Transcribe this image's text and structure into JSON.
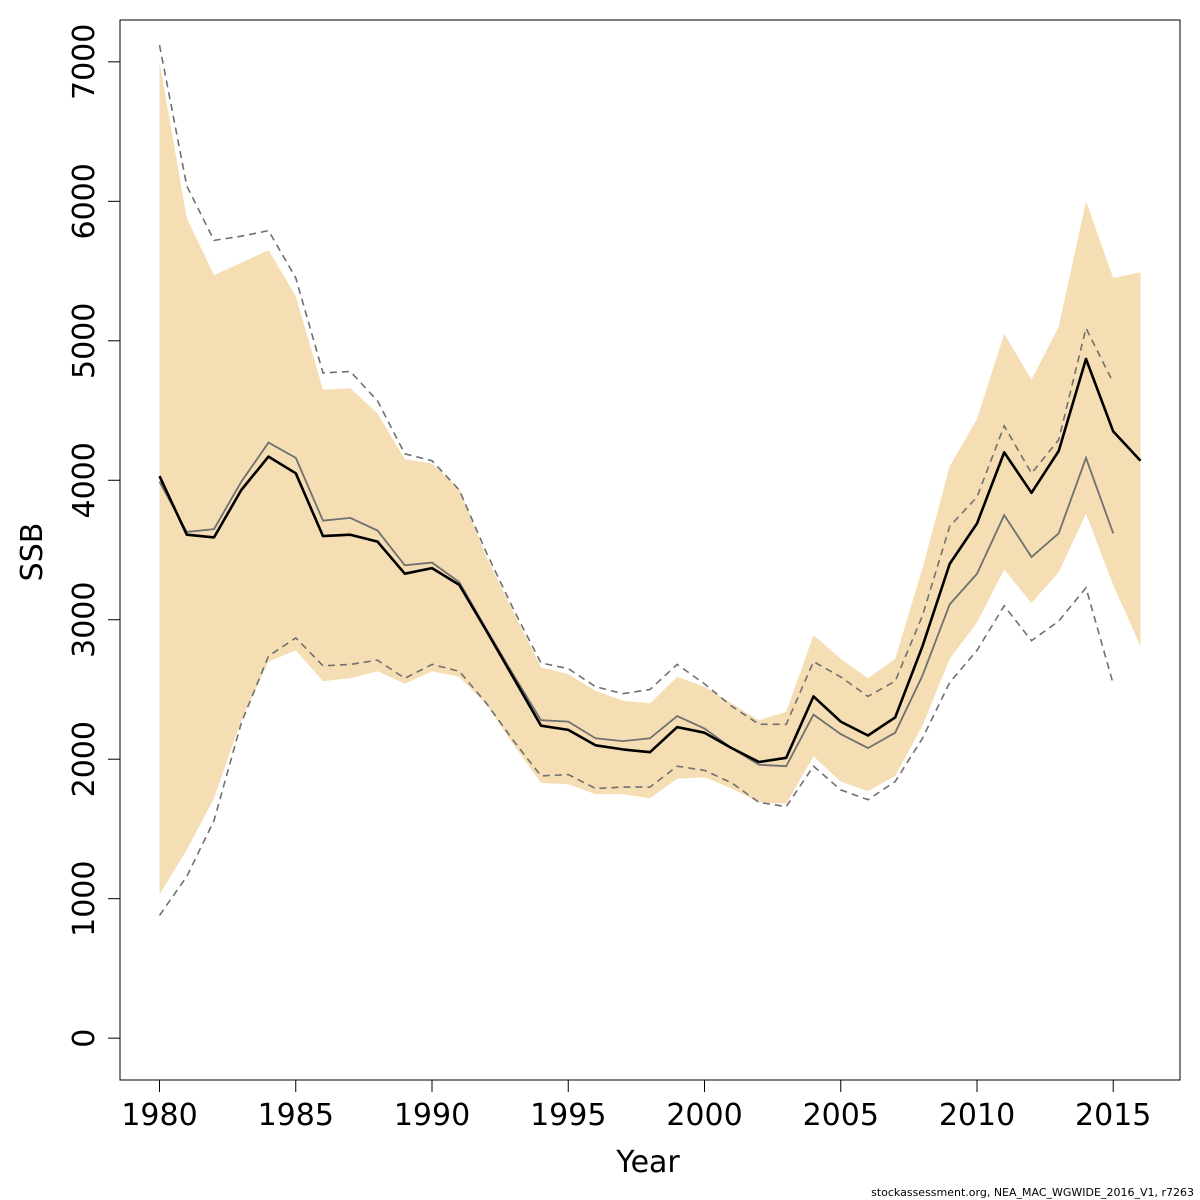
{
  "chart_data": {
    "type": "line",
    "xlabel": "Year",
    "ylabel": "SSB",
    "footnote": "stockassessment.org, NEA_MAC_WGWIDE_2016_V1, r7263",
    "xlim": [
      1978.6,
      1979.4
    ],
    "ylim": [
      -300,
      7300
    ],
    "x_ticks": [
      1980,
      1985,
      1990,
      1995,
      2000,
      2005,
      2010,
      2015
    ],
    "y_ticks": [
      0,
      1000,
      2000,
      3000,
      4000,
      5000,
      6000,
      7000
    ],
    "grid": false,
    "colors": {
      "band": "#f5deb3",
      "current": "#000000",
      "previous": "#707070"
    },
    "series": [
      {
        "role": "current-estimate",
        "x": [
          1980,
          1981,
          1982,
          1983,
          1984,
          1985,
          1986,
          1987,
          1988,
          1989,
          1990,
          1991,
          1992,
          1993,
          1994,
          1995,
          1996,
          1997,
          1998,
          1999,
          2000,
          2001,
          2002,
          2003,
          2004,
          2005,
          2006,
          2007,
          2008,
          2009,
          2010,
          2011,
          2012,
          2013,
          2014,
          2015,
          2016
        ],
        "values": [
          4030,
          3610,
          3590,
          3930,
          4170,
          4050,
          3600,
          3610,
          3560,
          3330,
          3370,
          3250,
          2920,
          2580,
          2240,
          2210,
          2100,
          2070,
          2050,
          2230,
          2190,
          2080,
          1980,
          2010,
          2450,
          2270,
          2170,
          2300,
          2810,
          3400,
          3690,
          4200,
          3910,
          4210,
          4870,
          4350,
          4140
        ],
        "lower": [
          1030,
          1350,
          1720,
          2280,
          2700,
          2780,
          2560,
          2580,
          2630,
          2540,
          2630,
          2590,
          2390,
          2100,
          1830,
          1820,
          1750,
          1750,
          1720,
          1860,
          1870,
          1790,
          1690,
          1680,
          2020,
          1840,
          1770,
          1880,
          2240,
          2720,
          2980,
          3360,
          3120,
          3340,
          3760,
          3250,
          2810
        ],
        "upper": [
          7000,
          5880,
          5470,
          5560,
          5650,
          5320,
          4650,
          4660,
          4480,
          4150,
          4120,
          3940,
          3450,
          3050,
          2660,
          2610,
          2490,
          2420,
          2400,
          2590,
          2520,
          2400,
          2280,
          2340,
          2890,
          2720,
          2580,
          2720,
          3370,
          4100,
          4440,
          5050,
          4720,
          5100,
          6000,
          5450,
          5490
        ]
      },
      {
        "role": "previous-estimate",
        "x": [
          1980,
          1981,
          1982,
          1983,
          1984,
          1985,
          1986,
          1987,
          1988,
          1989,
          1990,
          1991,
          1992,
          1993,
          1994,
          1995,
          1996,
          1997,
          1998,
          1999,
          2000,
          2001,
          2002,
          2003,
          2004,
          2005,
          2006,
          2007,
          2008,
          2009,
          2010,
          2011,
          2012,
          2013,
          2014,
          2015
        ],
        "values": [
          3990,
          3630,
          3650,
          3990,
          4270,
          4160,
          3710,
          3730,
          3640,
          3390,
          3410,
          3270,
          2930,
          2600,
          2280,
          2270,
          2150,
          2130,
          2150,
          2310,
          2220,
          2080,
          1960,
          1950,
          2320,
          2180,
          2080,
          2190,
          2600,
          3110,
          3330,
          3750,
          3450,
          3620,
          4160,
          3620
        ],
        "lower": [
          880,
          1160,
          1560,
          2260,
          2740,
          2870,
          2670,
          2680,
          2710,
          2580,
          2680,
          2630,
          2400,
          2130,
          1880,
          1890,
          1790,
          1800,
          1800,
          1950,
          1920,
          1830,
          1690,
          1660,
          1950,
          1780,
          1710,
          1840,
          2150,
          2550,
          2780,
          3100,
          2850,
          2990,
          3230,
          2540
        ],
        "upper": [
          7120,
          6110,
          5720,
          5750,
          5790,
          5450,
          4770,
          4780,
          4570,
          4190,
          4140,
          3930,
          3480,
          3070,
          2690,
          2650,
          2520,
          2470,
          2500,
          2680,
          2540,
          2380,
          2250,
          2250,
          2700,
          2590,
          2450,
          2560,
          3030,
          3670,
          3880,
          4390,
          4050,
          4290,
          5090,
          4700
        ]
      }
    ]
  }
}
